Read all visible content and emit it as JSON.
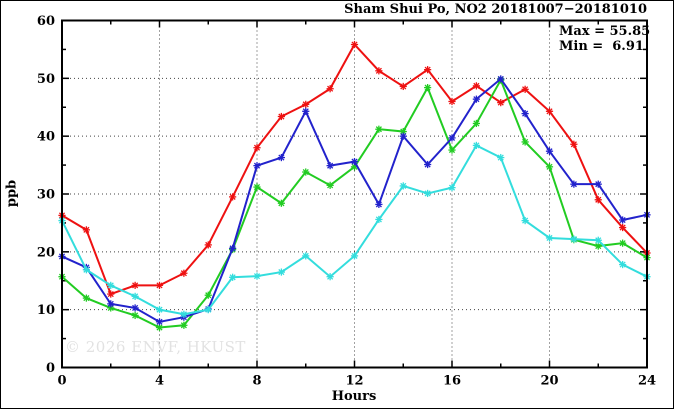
{
  "header": {
    "title": "Sham Shui Po, NO2 20181007−20181010"
  },
  "annotations": {
    "max_label": "Max = 55.85",
    "min_label": "Min =  6.91"
  },
  "watermark": "© 2026 ENVF, HKUST",
  "colors": {
    "frame": "#000000",
    "grid": "#444444",
    "series_red": "#ee1111",
    "series_blue": "#2222cc",
    "series_green": "#22cc22",
    "series_cyan": "#33dddd"
  },
  "chart_data": {
    "type": "line",
    "title": "Sham Shui Po, NO2 20181007−20181010",
    "xlabel": "Hours",
    "ylabel": "ppb",
    "xlim": [
      0,
      24
    ],
    "ylim": [
      0,
      60
    ],
    "x_major_ticks": [
      0,
      4,
      8,
      12,
      16,
      20,
      24
    ],
    "x_minor_step": 2,
    "y_major_ticks": [
      0,
      10,
      20,
      30,
      40,
      50,
      60
    ],
    "y_minor_step": 5,
    "grid": "dotted-at-major-ticks",
    "legend_position": "none",
    "marker": "star",
    "stat_max": 55.85,
    "stat_min": 6.91,
    "x": [
      0,
      1,
      2,
      3,
      4,
      5,
      6,
      7,
      8,
      9,
      10,
      11,
      12,
      13,
      14,
      15,
      16,
      17,
      18,
      19,
      20,
      21,
      22,
      23,
      24
    ],
    "series": [
      {
        "name": "red",
        "color": "#ee1111",
        "values": [
          26.3,
          23.8,
          12.7,
          14.2,
          14.2,
          16.3,
          21.2,
          29.5,
          38.0,
          43.4,
          45.5,
          48.2,
          55.85,
          51.3,
          48.6,
          51.5,
          46.0,
          48.7,
          45.8,
          48.1,
          44.3,
          38.6,
          29.0,
          24.2,
          19.8
        ]
      },
      {
        "name": "green",
        "color": "#22cc22",
        "values": [
          15.7,
          12.0,
          10.3,
          9.0,
          6.91,
          7.3,
          12.5,
          20.4,
          31.2,
          28.4,
          33.8,
          31.5,
          34.7,
          41.2,
          40.8,
          48.4,
          37.6,
          42.2,
          49.7,
          39.0,
          34.7,
          22.1,
          21.0,
          21.5,
          19.0
        ]
      },
      {
        "name": "blue",
        "color": "#2222cc",
        "values": [
          19.2,
          17.3,
          11.0,
          10.3,
          7.9,
          8.7,
          10.1,
          20.6,
          34.9,
          36.3,
          44.3,
          34.9,
          35.6,
          28.2,
          40.0,
          35.1,
          39.7,
          46.4,
          49.9,
          43.9,
          37.4,
          31.7,
          31.7,
          25.5,
          26.4
        ]
      },
      {
        "name": "cyan",
        "color": "#33dddd",
        "values": [
          25.4,
          16.9,
          14.2,
          12.3,
          10.0,
          9.2,
          10.0,
          15.6,
          15.8,
          16.5,
          19.3,
          15.7,
          19.3,
          25.6,
          31.4,
          30.1,
          31.1,
          38.4,
          36.3,
          25.4,
          22.4,
          22.2,
          22.0,
          17.8,
          15.7
        ]
      }
    ]
  }
}
